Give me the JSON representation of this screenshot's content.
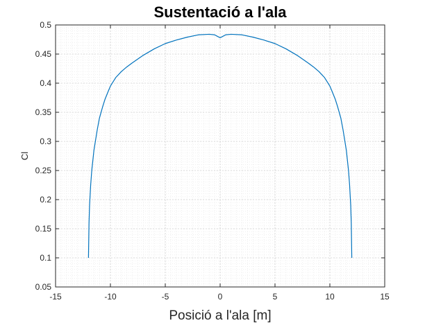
{
  "chart_data": {
    "type": "line",
    "title": "Sustentació a l'ala",
    "xlabel": "Posició a l'ala [m]",
    "ylabel": "Cl",
    "xlim": [
      -15,
      15
    ],
    "ylim": [
      0.05,
      0.5
    ],
    "xticks": [
      -15,
      -10,
      -5,
      0,
      5,
      10,
      15
    ],
    "yticks": [
      0.05,
      0.1,
      0.15,
      0.2,
      0.25,
      0.3,
      0.35,
      0.4,
      0.45,
      0.5
    ],
    "grid": true,
    "minor_grid": true,
    "line_color": "#0072BD",
    "series": [
      {
        "x": [
          -12,
          -11.95,
          -11.9,
          -11.8,
          -11.7,
          -11.5,
          -11.2,
          -11,
          -10.7,
          -10.5,
          -10.2,
          -10,
          -9.5,
          -9,
          -8.5,
          -8,
          -7,
          -6,
          -5,
          -4,
          -3,
          -2,
          -1,
          -0.5,
          -0.2,
          0,
          0.2,
          0.5,
          1,
          2,
          3,
          4,
          5,
          6,
          7,
          8,
          8.5,
          9,
          9.5,
          10,
          10.2,
          10.5,
          10.7,
          11,
          11.2,
          11.5,
          11.7,
          11.8,
          11.9,
          11.95,
          12
        ],
        "y": [
          0.1,
          0.16,
          0.19,
          0.225,
          0.25,
          0.285,
          0.32,
          0.34,
          0.36,
          0.372,
          0.386,
          0.395,
          0.41,
          0.42,
          0.428,
          0.435,
          0.448,
          0.459,
          0.468,
          0.474,
          0.479,
          0.483,
          0.484,
          0.483,
          0.48,
          0.478,
          0.48,
          0.483,
          0.484,
          0.483,
          0.479,
          0.474,
          0.468,
          0.459,
          0.448,
          0.435,
          0.428,
          0.42,
          0.41,
          0.395,
          0.386,
          0.372,
          0.36,
          0.34,
          0.32,
          0.285,
          0.25,
          0.225,
          0.19,
          0.16,
          0.1
        ]
      }
    ]
  }
}
